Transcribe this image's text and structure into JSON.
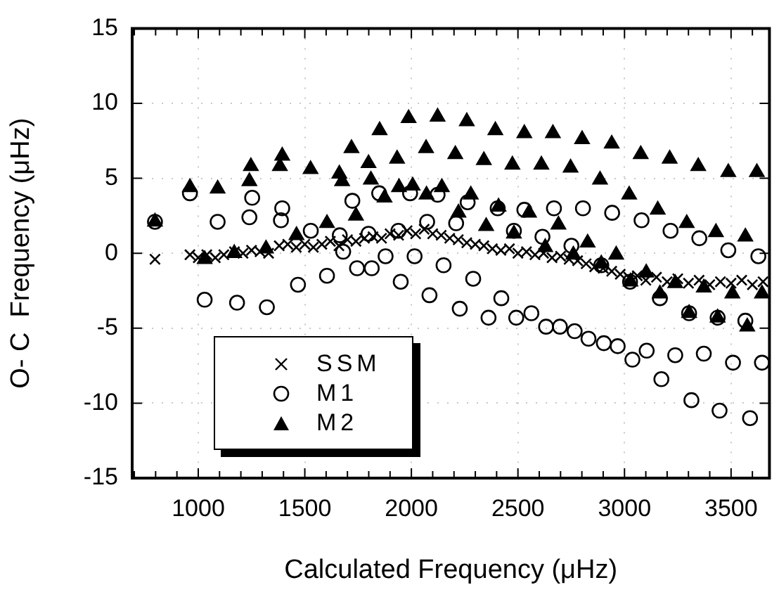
{
  "chart_data": {
    "type": "scatter",
    "xlabel": "Calculated Frequency (μHz)",
    "ylabel": "O- C  Frequency (μHz)",
    "xlim": [
      690,
      3680
    ],
    "ylim": [
      -15,
      15
    ],
    "xticks": [
      {
        "value": 700,
        "label": null
      },
      {
        "value": 800,
        "label": null
      },
      {
        "value": 900,
        "label": null
      },
      1000,
      {
        "value": 1100,
        "label": null
      },
      {
        "value": 1200,
        "label": null
      },
      {
        "value": 1300,
        "label": null
      },
      {
        "value": 1400,
        "label": null
      },
      1500,
      {
        "value": 1600,
        "label": null
      },
      {
        "value": 1700,
        "label": null
      },
      {
        "value": 1800,
        "label": null
      },
      {
        "value": 1900,
        "label": null
      },
      2000,
      {
        "value": 2100,
        "label": null
      },
      {
        "value": 2200,
        "label": null
      },
      {
        "value": 2300,
        "label": null
      },
      {
        "value": 2400,
        "label": null
      },
      2500,
      {
        "value": 2600,
        "label": null
      },
      {
        "value": 2700,
        "label": null
      },
      {
        "value": 2800,
        "label": null
      },
      {
        "value": 2900,
        "label": null
      },
      3000,
      {
        "value": 3100,
        "label": null
      },
      {
        "value": 3200,
        "label": null
      },
      {
        "value": 3300,
        "label": null
      },
      {
        "value": 3400,
        "label": null
      },
      3500,
      {
        "value": 3600,
        "label": null
      }
    ],
    "yticks": [
      -15,
      -10,
      -5,
      0,
      5,
      10,
      15
    ],
    "grid": true,
    "legend": "bottom left",
    "series": [
      {
        "name": "SSM",
        "color": "#000000",
        "marker": "cross",
        "x": [
          797,
          961,
          1000,
          1040,
          1080,
          1120,
          1170,
          1210,
          1250,
          1290,
          1330,
          1380,
          1420,
          1460,
          1500,
          1540,
          1580,
          1620,
          1660,
          1700,
          1740,
          1780,
          1820,
          1860,
          1900,
          1940,
          1980,
          2020,
          2060,
          2100,
          2140,
          2180,
          2220,
          2260,
          2300,
          2340,
          2380,
          2420,
          2460,
          2500,
          2540,
          2580,
          2620,
          2660,
          2700,
          2740,
          2780,
          2820,
          2860,
          2900,
          2940,
          2980,
          3020,
          3060,
          3100,
          3150,
          3200,
          3250,
          3300,
          3350,
          3400,
          3450,
          3500,
          3550,
          3600,
          3650
        ],
        "values": [
          -0.4,
          -0.1,
          -0.3,
          -0.1,
          -0.3,
          -0.1,
          0.1,
          0.0,
          0.2,
          0.1,
          0.0,
          0.5,
          0.6,
          0.4,
          0.6,
          0.4,
          0.6,
          0.8,
          0.5,
          0.9,
          0.8,
          1.0,
          1.1,
          1.0,
          1.3,
          1.2,
          1.5,
          1.3,
          1.6,
          1.3,
          1.2,
          1.0,
          0.9,
          0.7,
          0.6,
          0.5,
          0.3,
          0.2,
          0.3,
          0.0,
          0.1,
          -0.1,
          0.0,
          -0.3,
          -0.2,
          -0.4,
          -0.5,
          -0.7,
          -0.9,
          -1.0,
          -1.2,
          -1.4,
          -1.6,
          -1.5,
          -1.8,
          -1.6,
          -1.9,
          -1.7,
          -2.0,
          -1.8,
          -2.1,
          -1.9,
          -2.0,
          -1.8,
          -2.1,
          -1.9
        ]
      },
      {
        "name": "M1",
        "color": "#000000",
        "marker": "circle",
        "x": [
          797,
          961,
          1030,
          1091,
          1182,
          1240,
          1253,
          1322,
          1388,
          1394,
          1468,
          1528,
          1604,
          1664,
          1680,
          1723,
          1745,
          1799,
          1814,
          1849,
          1879,
          1939,
          1950,
          1994,
          2015,
          2074,
          2085,
          2123,
          2151,
          2210,
          2227,
          2264,
          2290,
          2362,
          2405,
          2422,
          2481,
          2492,
          2530,
          2563,
          2615,
          2632,
          2669,
          2697,
          2751,
          2766,
          2805,
          2831,
          2891,
          2903,
          2942,
          2968,
          3026,
          3037,
          3080,
          3104,
          3166,
          3173,
          3216,
          3238,
          3303,
          3314,
          3351,
          3372,
          3437,
          3446,
          3487,
          3509,
          3567,
          3589,
          3628,
          3645
        ],
        "values": [
          2.1,
          4.0,
          -3.1,
          2.1,
          -3.3,
          2.4,
          3.7,
          -3.6,
          2.2,
          3.0,
          -2.1,
          1.5,
          -1.5,
          1.2,
          0.1,
          3.5,
          -1.0,
          1.3,
          -1.0,
          4.0,
          -0.2,
          1.5,
          -1.9,
          4.0,
          -0.2,
          2.1,
          -2.8,
          3.9,
          -0.8,
          2.0,
          -3.7,
          3.4,
          -1.7,
          -4.3,
          3.0,
          -3.0,
          1.5,
          -4.3,
          2.9,
          -4.0,
          1.1,
          -4.9,
          3.0,
          -4.9,
          0.5,
          -5.2,
          3.0,
          -5.7,
          -0.8,
          -6.0,
          2.7,
          -6.2,
          -1.9,
          -7.1,
          2.2,
          -6.5,
          -3.0,
          -8.4,
          1.5,
          -6.8,
          -4.0,
          -9.8,
          1.0,
          -6.7,
          -4.3,
          -10.5,
          0.2,
          -7.3,
          -4.5,
          -11.0,
          -0.2,
          -7.3
        ]
      },
      {
        "name": "M2",
        "color": "#000000",
        "marker": "triangle",
        "x": [
          797,
          961,
          1030,
          1091,
          1169,
          1240,
          1247,
          1318,
          1383,
          1394,
          1461,
          1527,
          1604,
          1662,
          1675,
          1719,
          1740,
          1799,
          1810,
          1851,
          1874,
          1933,
          1942,
          1987,
          2006,
          2069,
          2071,
          2123,
          2143,
          2206,
          2221,
          2260,
          2279,
          2340,
          2351,
          2394,
          2409,
          2474,
          2481,
          2530,
          2552,
          2610,
          2628,
          2664,
          2690,
          2747,
          2760,
          2801,
          2827,
          2885,
          2891,
          2940,
          2961,
          3022,
          3028,
          3076,
          3102,
          3156,
          3166,
          3212,
          3238,
          3292,
          3303,
          3346,
          3372,
          3429,
          3437,
          3487,
          3506,
          3567,
          3576,
          3621,
          3645
        ],
        "values": [
          2.1,
          4.4,
          -0.4,
          4.3,
          0.0,
          4.8,
          5.8,
          0.3,
          5.8,
          6.5,
          1.2,
          5.6,
          2.0,
          5.3,
          4.8,
          7.0,
          2.5,
          6.0,
          4.9,
          8.2,
          3.7,
          6.3,
          4.4,
          9.0,
          4.5,
          7.0,
          3.9,
          9.1,
          4.4,
          6.6,
          2.7,
          8.8,
          3.9,
          6.2,
          1.8,
          8.2,
          3.1,
          5.9,
          1.3,
          8.0,
          2.7,
          5.9,
          0.4,
          8.0,
          1.9,
          5.7,
          -0.1,
          7.6,
          0.7,
          4.9,
          -0.7,
          7.3,
          -0.1,
          3.9,
          -1.9,
          6.6,
          -1.3,
          2.9,
          -2.7,
          6.3,
          -2.0,
          2.0,
          -4.0,
          5.8,
          -2.3,
          1.4,
          -4.3,
          5.4,
          -2.7,
          1.1,
          -4.9,
          5.4,
          -2.7
        ]
      }
    ]
  }
}
